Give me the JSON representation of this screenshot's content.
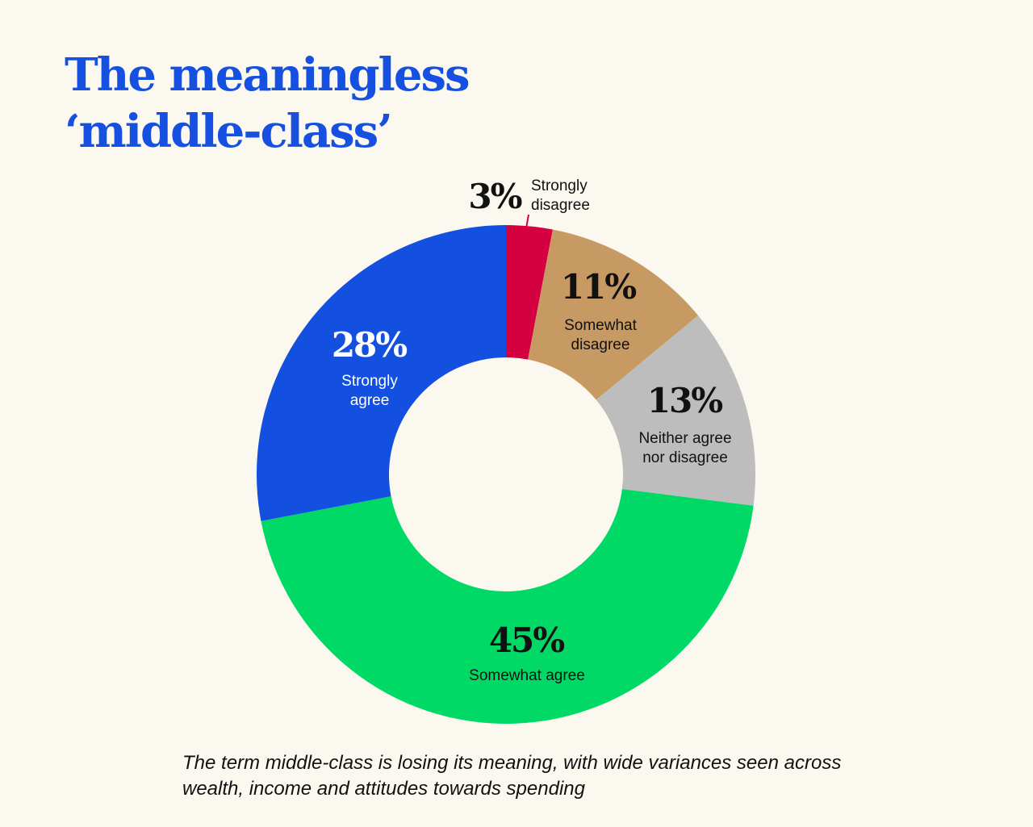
{
  "title_lines": [
    "The meaningless",
    "‘middle-class’"
  ],
  "caption": "The term middle-class is losing its meaning, with wide variances seen across wealth, income and attitudes towards spending",
  "chart_data": {
    "type": "pie",
    "subtype": "donut",
    "title": "The meaningless ‘middle-class’",
    "slices": [
      {
        "label_lines": [
          "Strongly",
          "disagree"
        ],
        "value": 3,
        "display": "3%",
        "color": "#d4003f",
        "label_color": "#111111"
      },
      {
        "label_lines": [
          "Somewhat",
          "disagree"
        ],
        "value": 11,
        "display": "11%",
        "color": "#c69a62",
        "label_color": "#111111"
      },
      {
        "label_lines": [
          "Neither agree",
          "nor disagree"
        ],
        "value": 13,
        "display": "13%",
        "color": "#bdbdbd",
        "label_color": "#111111"
      },
      {
        "label_lines": [
          "Somewhat agree"
        ],
        "value": 45,
        "display": "45%",
        "color": "#00d966",
        "label_color": "#111111"
      },
      {
        "label_lines": [
          "Strongly",
          "agree"
        ],
        "value": 28,
        "display": "28%",
        "color": "#1350e0",
        "label_color": "#ffffff"
      }
    ],
    "legend": "none"
  }
}
